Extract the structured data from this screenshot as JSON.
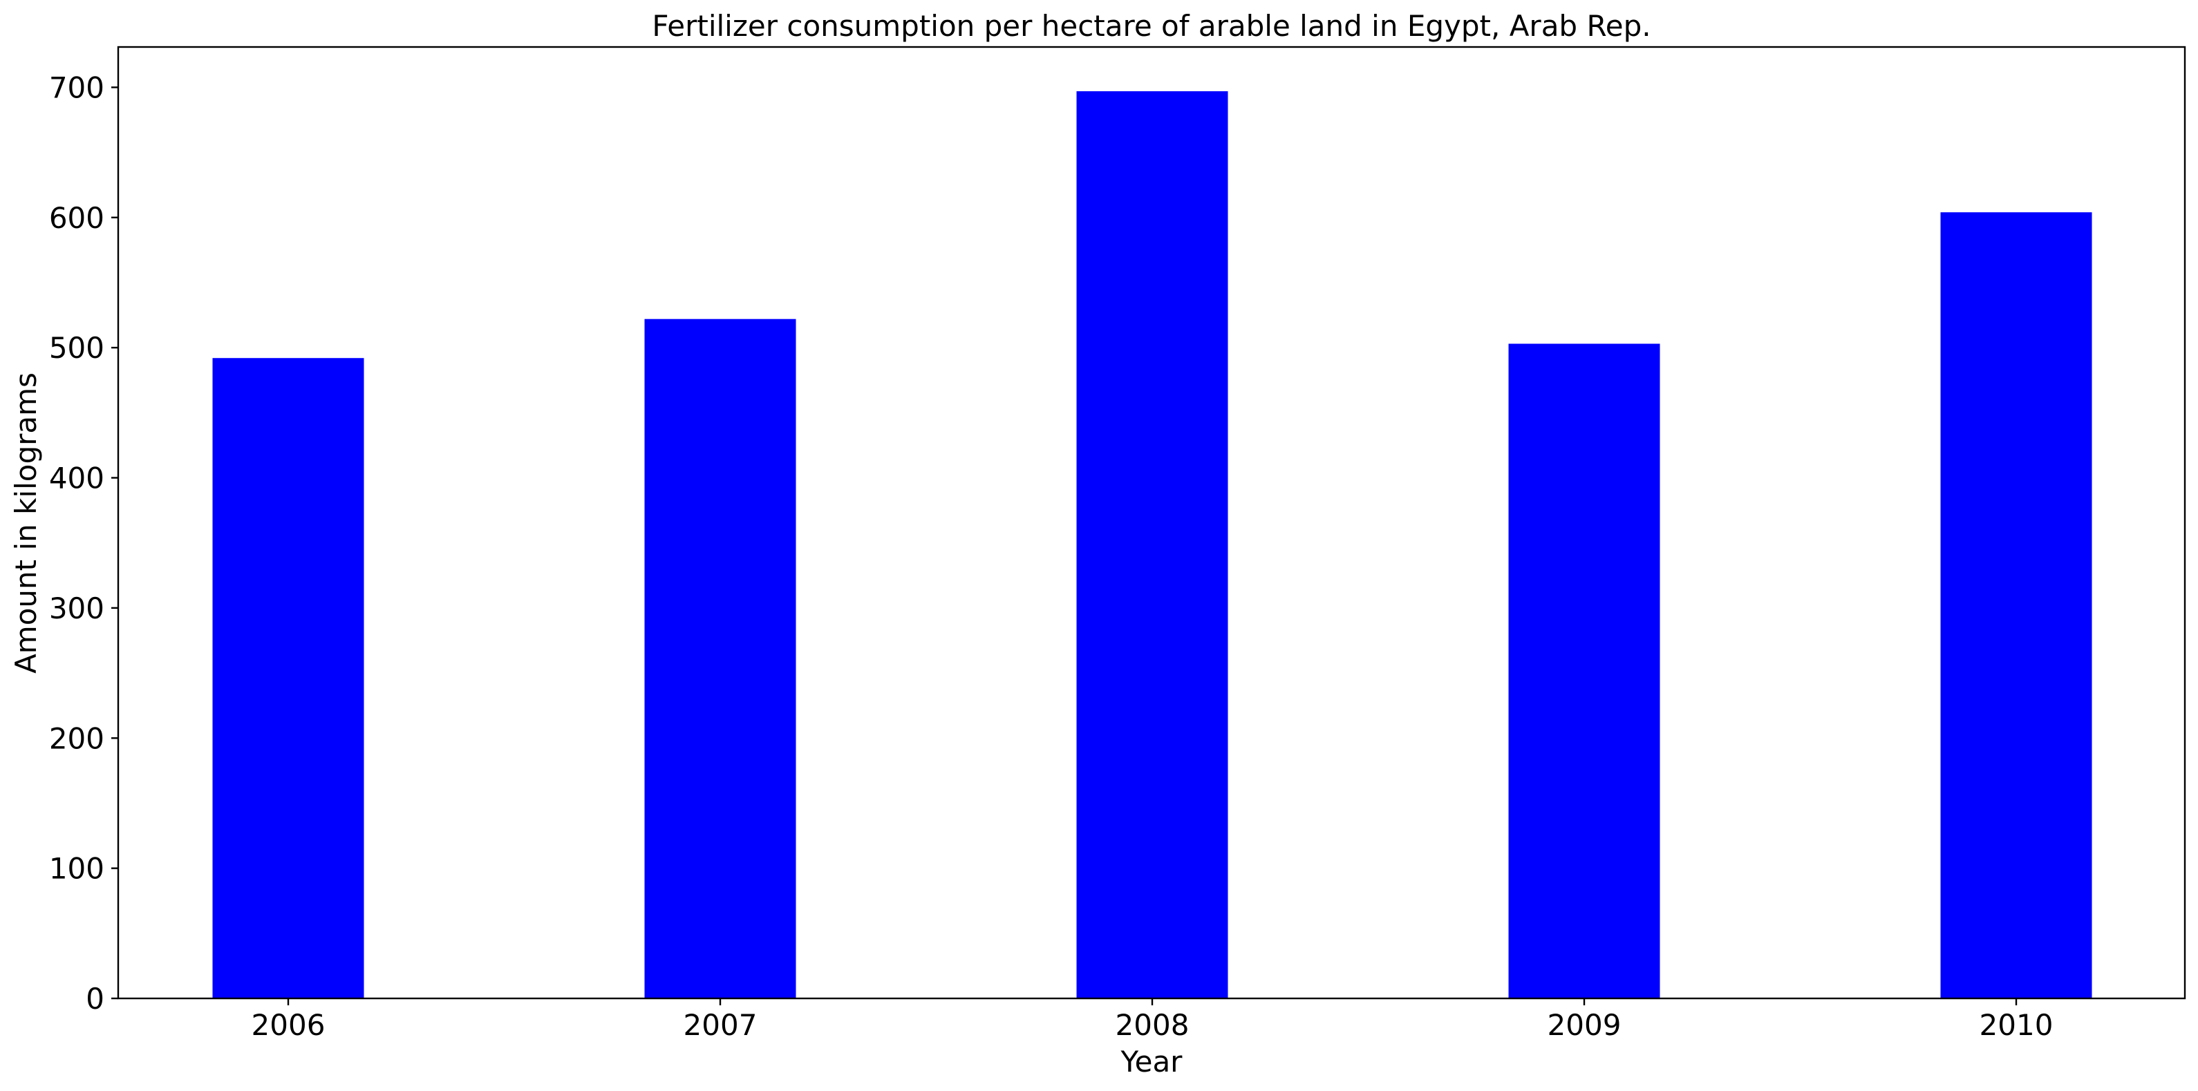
{
  "chart_data": {
    "type": "bar",
    "title": "Fertilizer consumption per hectare of arable land in Egypt, Arab Rep.",
    "xlabel": "Year",
    "ylabel": "Amount in kilograms",
    "categories": [
      "2006",
      "2007",
      "2008",
      "2009",
      "2010"
    ],
    "values": [
      492,
      522,
      697,
      503,
      604
    ],
    "ylim": [
      0,
      731
    ],
    "yticks": [
      0,
      100,
      200,
      300,
      400,
      500,
      600,
      700
    ],
    "bar_color": "#0000ff",
    "grid": false,
    "legend": "none"
  }
}
